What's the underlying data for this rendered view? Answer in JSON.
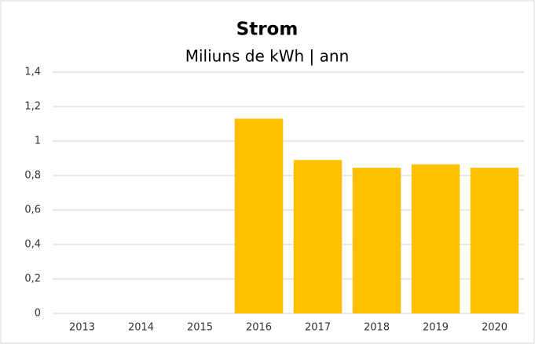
{
  "chart_data": {
    "type": "bar",
    "title": "Strom",
    "subtitle": "Miliuns de kWh | ann",
    "categories": [
      "2013",
      "2014",
      "2015",
      "2016",
      "2017",
      "2018",
      "2019",
      "2020"
    ],
    "values": [
      null,
      null,
      null,
      1.13,
      0.89,
      0.845,
      0.865,
      0.845
    ],
    "color": "#ffc000",
    "ylim": [
      0,
      1.4
    ],
    "yticks": [
      0,
      {
        "value": 0.2,
        "label": "0,2"
      },
      {
        "value": 0.4,
        "label": "0,4"
      },
      {
        "value": 0.6,
        "label": "0,6"
      },
      {
        "value": 0.8,
        "label": "0,8"
      },
      1,
      {
        "value": 1.2,
        "label": "1,2"
      },
      {
        "value": 1.4,
        "label": "1,4"
      }
    ],
    "grid": true
  }
}
